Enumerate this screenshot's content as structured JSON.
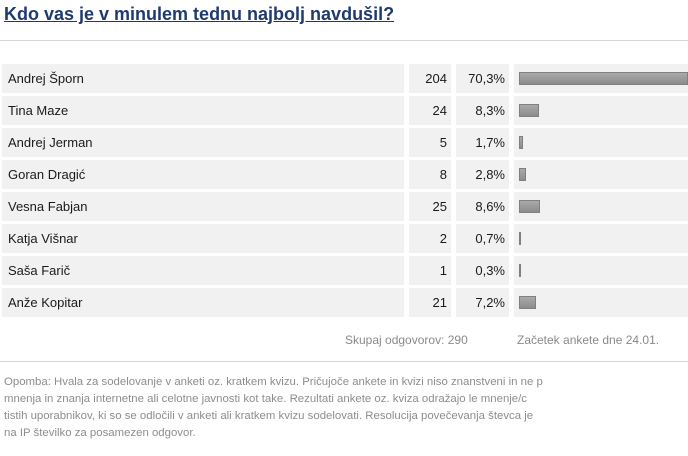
{
  "poll": {
    "question": "Kdo vas je v minulem tednu najbolj navdušil?",
    "bar_color": "#999999",
    "options": [
      {
        "name": "Andrej Šporn",
        "votes": "204",
        "percent": "70,3%",
        "fraction": 0.703
      },
      {
        "name": "Tina Maze",
        "votes": "24",
        "percent": "8,3%",
        "fraction": 0.083
      },
      {
        "name": "Andrej Jerman",
        "votes": "5",
        "percent": "1,7%",
        "fraction": 0.017
      },
      {
        "name": "Goran Dragić",
        "votes": "8",
        "percent": "2,8%",
        "fraction": 0.028
      },
      {
        "name": "Vesna Fabjan",
        "votes": "25",
        "percent": "8,6%",
        "fraction": 0.086
      },
      {
        "name": "Katja Višnar",
        "votes": "2",
        "percent": "0,7%",
        "fraction": 0.007
      },
      {
        "name": "Saša Farič",
        "votes": "1",
        "percent": "0,3%",
        "fraction": 0.003
      },
      {
        "name": "Anže Kopitar",
        "votes": "21",
        "percent": "7,2%",
        "fraction": 0.072
      }
    ],
    "total_label": "Skupaj odgovorov: 290",
    "start_label": "Začetek ankete dne 24.01.",
    "note_lines": [
      "Opomba: Hvala za sodelovanje v anketi oz. kratkem kvizu. Pričujoče ankete in kvizi niso znanstveni in ne p",
      "mnenja in znanja internetne ali celotne javnosti kot take. Rezultati ankete oz. kviza odražajo le mnenje/c",
      "tistih uporabnikov, ki so se odločili v anketi ali kratkem kvizu sodelovati. Resolucija povečevanja števca je",
      "na IP številko za posamezen odgovor."
    ]
  }
}
